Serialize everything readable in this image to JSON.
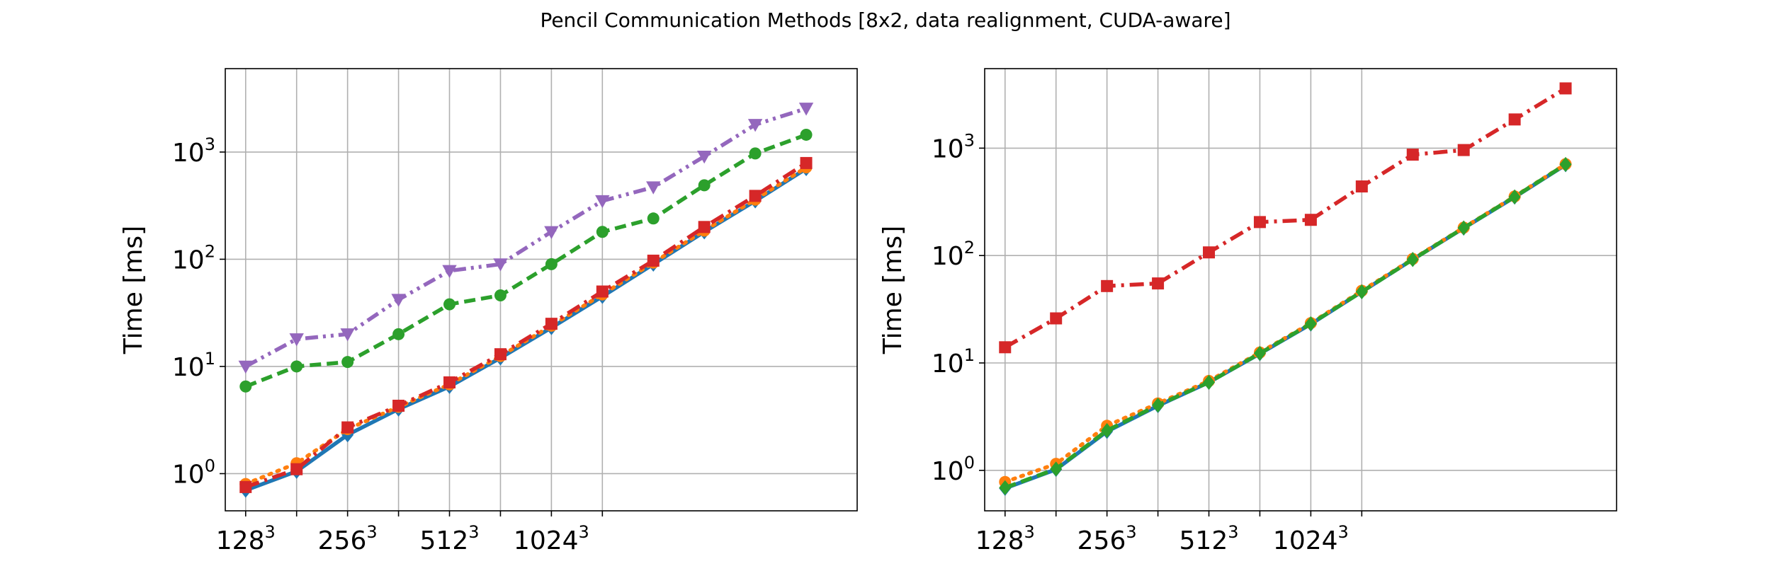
{
  "figure": {
    "title": "Pencil Communication Methods [8x2, data realignment, CUDA-aware]"
  },
  "chart_data": [
    {
      "type": "line",
      "title": "",
      "xlabel": "",
      "ylabel": "Time [ms]",
      "yscale": "log",
      "ylim": [
        0.45,
        6000
      ],
      "grid": true,
      "legend": "none",
      "x": [
        1,
        2,
        3,
        4,
        5,
        6,
        7,
        8,
        9,
        10,
        11,
        12
      ],
      "xticks": [
        {
          "x": 1,
          "base": "128",
          "exp": "3"
        },
        {
          "x": 2,
          "base": "",
          "exp": ""
        },
        {
          "x": 3,
          "base": "256",
          "exp": "3"
        },
        {
          "x": 4,
          "base": "",
          "exp": ""
        },
        {
          "x": 5,
          "base": "512",
          "exp": "3"
        },
        {
          "x": 6,
          "base": "",
          "exp": ""
        },
        {
          "x": 7,
          "base": "1024",
          "exp": "3"
        },
        {
          "x": 8,
          "base": "",
          "exp": ""
        }
      ],
      "yticks": [
        {
          "value": 1,
          "base": "10",
          "exp": "0"
        },
        {
          "value": 10,
          "base": "10",
          "exp": "1"
        },
        {
          "value": 100,
          "base": "10",
          "exp": "2"
        },
        {
          "value": 1000,
          "base": "10",
          "exp": "3"
        }
      ],
      "series": [
        {
          "color": "#1f77b4",
          "dash": "solid",
          "marker": "diamond",
          "values": [
            0.7,
            1.05,
            2.3,
            4.0,
            6.5,
            12,
            23,
            45,
            90,
            180,
            350,
            700
          ]
        },
        {
          "color": "#ff7f0e",
          "dash": "dotted",
          "marker": "circle",
          "values": [
            0.8,
            1.25,
            2.6,
            4.2,
            6.8,
            12.5,
            24,
            47,
            93,
            185,
            360,
            720
          ]
        },
        {
          "color": "#2ca02c",
          "dash": "dashed",
          "marker": "circle",
          "values": [
            6.5,
            10,
            11,
            20,
            38,
            46,
            90,
            180,
            240,
            490,
            970,
            1450
          ]
        },
        {
          "color": "#d62728",
          "dash": "dashdot",
          "marker": "square",
          "values": [
            0.75,
            1.1,
            2.7,
            4.3,
            7.1,
            13,
            25,
            50,
            97,
            200,
            390,
            790
          ]
        },
        {
          "color": "#9467bd",
          "dash": "dashdotdot",
          "marker": "triangle-down",
          "values": [
            10,
            18,
            20,
            42,
            78,
            90,
            180,
            350,
            470,
            910,
            1800,
            2550
          ]
        }
      ]
    },
    {
      "type": "line",
      "title": "",
      "xlabel": "",
      "ylabel": "Time [ms]",
      "yscale": "log",
      "ylim": [
        0.42,
        5500
      ],
      "grid": true,
      "legend": "none",
      "x": [
        1,
        2,
        3,
        4,
        5,
        6,
        7,
        8,
        9,
        10,
        11,
        12
      ],
      "xticks": [
        {
          "x": 1,
          "base": "128",
          "exp": "3"
        },
        {
          "x": 2,
          "base": "",
          "exp": ""
        },
        {
          "x": 3,
          "base": "256",
          "exp": "3"
        },
        {
          "x": 4,
          "base": "",
          "exp": ""
        },
        {
          "x": 5,
          "base": "512",
          "exp": "3"
        },
        {
          "x": 6,
          "base": "",
          "exp": ""
        },
        {
          "x": 7,
          "base": "1024",
          "exp": "3"
        },
        {
          "x": 8,
          "base": "",
          "exp": ""
        }
      ],
      "yticks": [
        {
          "value": 1,
          "base": "10",
          "exp": "0"
        },
        {
          "value": 10,
          "base": "10",
          "exp": "1"
        },
        {
          "value": 100,
          "base": "10",
          "exp": "2"
        },
        {
          "value": 1000,
          "base": "10",
          "exp": "3"
        }
      ],
      "series": [
        {
          "color": "#1f77b4",
          "dash": "solid",
          "marker": "diamond",
          "values": [
            0.68,
            1.02,
            2.3,
            4.0,
            6.6,
            12.2,
            23,
            46,
            92,
            180,
            350,
            700
          ]
        },
        {
          "color": "#ff7f0e",
          "dash": "dotted",
          "marker": "circle",
          "values": [
            0.78,
            1.15,
            2.6,
            4.2,
            6.8,
            12.5,
            23.5,
            47,
            93,
            182,
            355,
            710
          ]
        },
        {
          "color": "#d62728",
          "dash": "dashdot",
          "marker": "square",
          "values": [
            14,
            26,
            52,
            55,
            107,
            205,
            215,
            440,
            870,
            960,
            1850,
            3600
          ]
        },
        {
          "color": "#2ca02c",
          "dash": "dashed",
          "marker": "diamond",
          "values": [
            0.69,
            1.03,
            2.35,
            4.05,
            6.6,
            12.3,
            23.2,
            46,
            92,
            181,
            352,
            705
          ]
        }
      ]
    }
  ]
}
